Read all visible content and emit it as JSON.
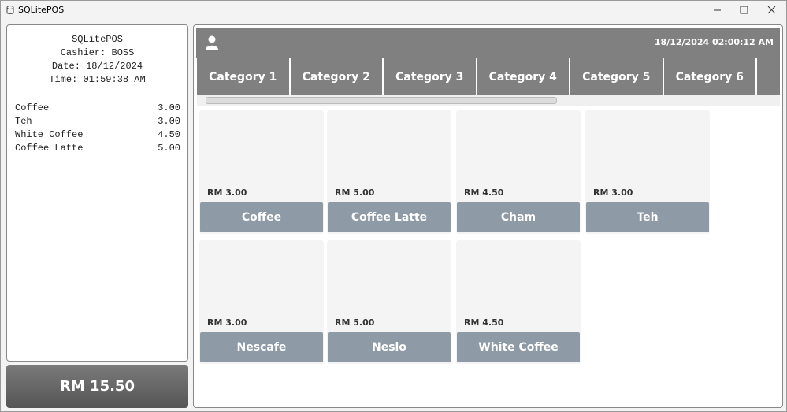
{
  "window": {
    "title": "SQLitePOS"
  },
  "receipt": {
    "header": [
      "SQLitePOS",
      "Cashier: BOSS",
      "Date: 18/12/2024",
      "Time: 01:59:38 AM"
    ],
    "items": [
      {
        "name": "Coffee",
        "price": "3.00"
      },
      {
        "name": "Teh",
        "price": "3.00"
      },
      {
        "name": "White Coffee",
        "price": "4.50"
      },
      {
        "name": "Coffee Latte",
        "price": "5.00"
      }
    ],
    "total": "RM 15.50"
  },
  "topbar": {
    "datetime": "18/12/2024 02:00:12 AM"
  },
  "categories": [
    "Category 1",
    "Category 2",
    "Category 3",
    "Category 4",
    "Category 5",
    "Category 6"
  ],
  "products": [
    {
      "price": "RM 3.00",
      "name": "Coffee"
    },
    {
      "price": "RM 5.00",
      "name": "Coffee Latte"
    },
    {
      "price": "RM 4.50",
      "name": "Cham"
    },
    {
      "price": "RM 3.00",
      "name": "Teh"
    },
    {
      "price": "RM 3.00",
      "name": "Nescafe"
    },
    {
      "price": "RM 5.00",
      "name": "Neslo"
    },
    {
      "price": "RM 4.50",
      "name": "White Coffee"
    }
  ]
}
